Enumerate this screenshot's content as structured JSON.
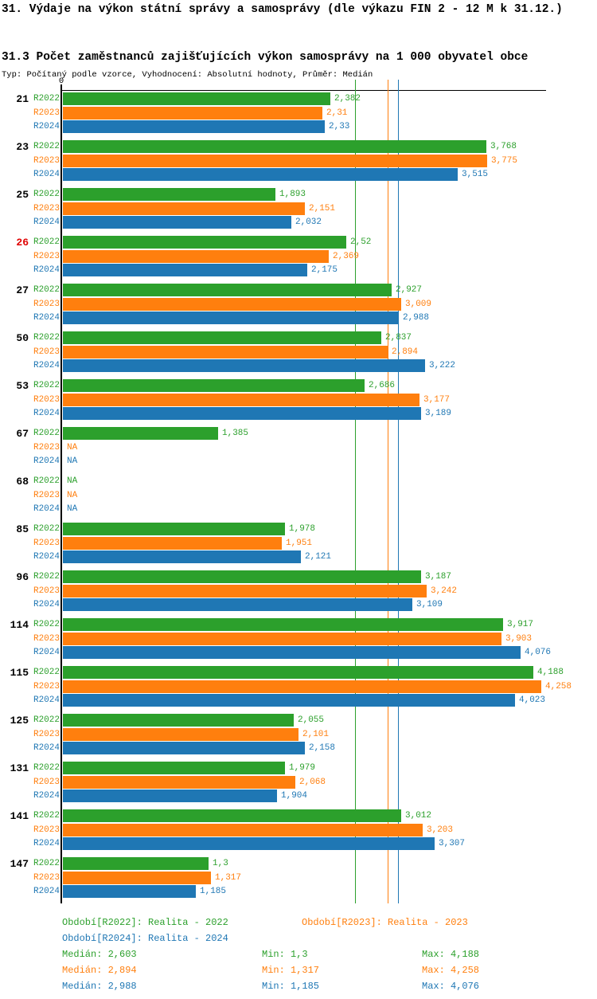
{
  "page": {
    "title": "31. Výdaje na výkon státní správy a samosprávy (dle výkazu FIN 2 - 12 M k 31.12.)",
    "subtitle": "31.3 Počet zaměstnanců zajišťujících výkon samosprávy na 1 000 obyvatel obce",
    "meta": "Typ: Počítaný podle vzorce, Vyhodnocení: Absolutní hodnoty, Průměr: Medián",
    "axis_zero_label": "0"
  },
  "colors": {
    "r2022": "#2ca02c",
    "r2023": "#ff7f0e",
    "r2024": "#1f77b4",
    "highlight": "#e00000",
    "axis": "#000000"
  },
  "series_meta": [
    {
      "name": "R2022",
      "color": "#2ca02c",
      "legend_label": "Období[R2022]: Realita - 2022",
      "median_label": "Medián: 2,603",
      "min_label": "Min: 1,3",
      "max_label": "Max: 4,188"
    },
    {
      "name": "R2023",
      "color": "#ff7f0e",
      "legend_label": "Období[R2023]: Realita - 2023",
      "median_label": "Medián: 2,894",
      "min_label": "Min: 1,317",
      "max_label": "Max: 4,258"
    },
    {
      "name": "R2024",
      "color": "#1f77b4",
      "legend_label": "Období[R2024]: Realita - 2024",
      "median_label": "Medián: 2,988",
      "min_label": "Min: 1,185",
      "max_label": "Max: 4,076"
    }
  ],
  "chart_data": {
    "type": "bar",
    "orientation": "horizontal",
    "title": "31.3 Počet zaměstnanců zajišťujících výkon samosprávy na 1 000 obyvatel obce",
    "categories": [
      "21",
      "23",
      "25",
      "26",
      "27",
      "50",
      "53",
      "67",
      "68",
      "85",
      "96",
      "114",
      "115",
      "125",
      "131",
      "141",
      "147"
    ],
    "highlighted_category": "26",
    "xlim": [
      0,
      4.3
    ],
    "na_text": "NA",
    "series": [
      {
        "name": "R2022",
        "values": [
          2.382,
          3.768,
          1.893,
          2.52,
          2.927,
          2.837,
          2.686,
          1.385,
          null,
          1.978,
          3.187,
          3.917,
          4.188,
          2.055,
          1.979,
          3.012,
          1.3
        ],
        "labels": [
          "2,382",
          "3,768",
          "1,893",
          "2,52",
          "2,927",
          "2,837",
          "2,686",
          "1,385",
          "NA",
          "1,978",
          "3,187",
          "3,917",
          "4,188",
          "2,055",
          "1,979",
          "3,012",
          "1,3"
        ]
      },
      {
        "name": "R2023",
        "values": [
          2.31,
          3.775,
          2.151,
          2.369,
          3.009,
          2.894,
          3.177,
          null,
          null,
          1.951,
          3.242,
          3.903,
          4.258,
          2.101,
          2.068,
          3.203,
          1.317
        ],
        "labels": [
          "2,31",
          "3,775",
          "2,151",
          "2,369",
          "3,009",
          "2,894",
          "3,177",
          "NA",
          "NA",
          "1,951",
          "3,242",
          "3,903",
          "4,258",
          "2,101",
          "2,068",
          "3,203",
          "1,317"
        ]
      },
      {
        "name": "R2024",
        "values": [
          2.33,
          3.515,
          2.032,
          2.175,
          2.988,
          3.222,
          3.189,
          null,
          null,
          2.121,
          3.109,
          4.076,
          4.023,
          2.158,
          1.904,
          3.307,
          1.185
        ],
        "labels": [
          "2,33",
          "3,515",
          "2,032",
          "2,175",
          "2,988",
          "3,222",
          "3,189",
          "NA",
          "NA",
          "2,121",
          "3,109",
          "4,076",
          "4,023",
          "2,158",
          "1,904",
          "3,307",
          "1,185"
        ]
      }
    ],
    "medians": {
      "R2022": 2.603,
      "R2023": 2.894,
      "R2024": 2.988
    },
    "stats": {
      "R2022": {
        "median": "2,603",
        "min": "1,3",
        "max": "4,188"
      },
      "R2023": {
        "median": "2,894",
        "min": "1,317",
        "max": "4,258"
      },
      "R2024": {
        "median": "2,988",
        "min": "1,185",
        "max": "4,076"
      }
    },
    "legend_position": "bottom",
    "grid": false
  }
}
